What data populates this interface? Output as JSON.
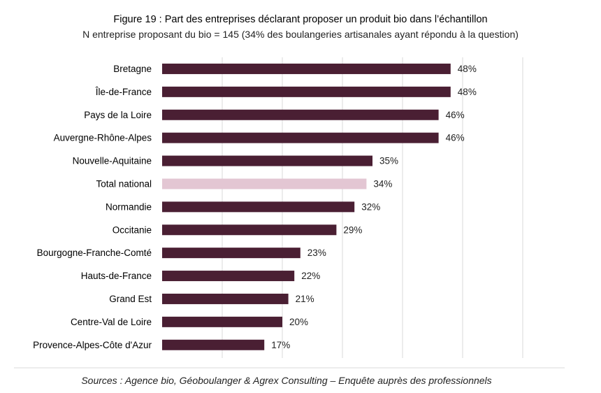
{
  "chart_data": {
    "type": "bar",
    "orientation": "horizontal",
    "title": "Figure 19 : Part des entreprises déclarant proposer un produit bio dans l’échantillon",
    "subtitle": "N entreprise proposant du bio = 145 (34% des boulangeries artisanales ayant répondu à la question)",
    "source": "Sources : Agence bio, Géoboulanger & Agrex Consulting – Enquête auprès des professionnels",
    "categories": [
      "Bretagne",
      "Île-de-France",
      "Pays de la Loire",
      "Auvergne-Rhône-Alpes",
      "Nouvelle-Aquitaine",
      "Total national",
      "Normandie",
      "Occitanie",
      "Bourgogne-Franche-Comté",
      "Hauts-de-France",
      "Grand Est",
      "Centre-Val de Loire",
      "Provence-Alpes-Côte d'Azur"
    ],
    "values": [
      48,
      48,
      46,
      46,
      35,
      34,
      32,
      29,
      23,
      22,
      21,
      20,
      17
    ],
    "value_labels": [
      "48%",
      "48%",
      "46%",
      "46%",
      "35%",
      "34%",
      "32%",
      "29%",
      "23%",
      "22%",
      "21%",
      "20%",
      "17%"
    ],
    "highlight_category": "Total national",
    "bar_color": "#4a1f33",
    "highlight_color": "#e3c6d3",
    "grid_color": "#d9d9d9",
    "xlim": [
      0,
      60
    ],
    "grid": true,
    "legend": "none"
  }
}
